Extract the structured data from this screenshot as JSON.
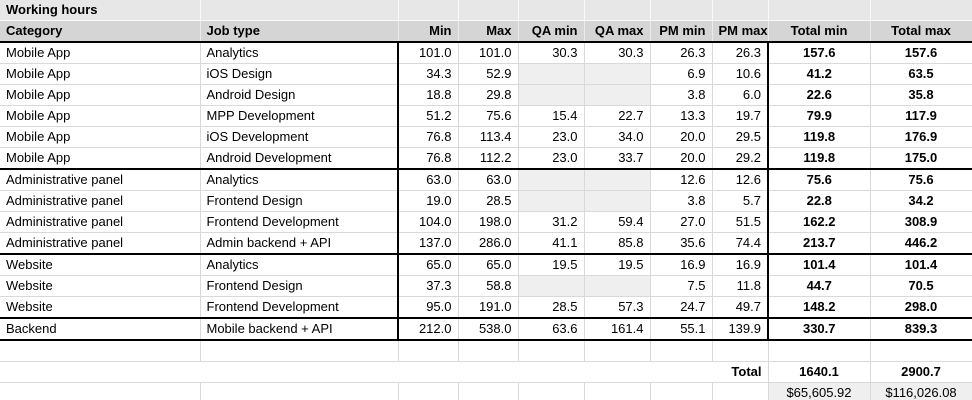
{
  "title": "Working hours",
  "columns": [
    {
      "key": "category",
      "label": "Category"
    },
    {
      "key": "job_type",
      "label": "Job type"
    },
    {
      "key": "min",
      "label": "Min"
    },
    {
      "key": "max",
      "label": "Max"
    },
    {
      "key": "qa_min",
      "label": "QA min"
    },
    {
      "key": "qa_max",
      "label": "QA max"
    },
    {
      "key": "pm_min",
      "label": "PM min"
    },
    {
      "key": "pm_max",
      "label": "PM max"
    },
    {
      "key": "total_min",
      "label": "Total min"
    },
    {
      "key": "total_max",
      "label": "Total max"
    }
  ],
  "rows": [
    {
      "category": "Mobile App",
      "job_type": "Analytics",
      "min": "101.0",
      "max": "101.0",
      "qa_min": "30.3",
      "qa_max": "30.3",
      "pm_min": "26.3",
      "pm_max": "26.3",
      "total_min": "157.6",
      "total_max": "157.6",
      "section_end": false
    },
    {
      "category": "Mobile App",
      "job_type": "iOS Design",
      "min": "34.3",
      "max": "52.9",
      "qa_min": "",
      "qa_max": "",
      "pm_min": "6.9",
      "pm_max": "10.6",
      "total_min": "41.2",
      "total_max": "63.5",
      "section_end": false
    },
    {
      "category": "Mobile App",
      "job_type": "Android Design",
      "min": "18.8",
      "max": "29.8",
      "qa_min": "",
      "qa_max": "",
      "pm_min": "3.8",
      "pm_max": "6.0",
      "total_min": "22.6",
      "total_max": "35.8",
      "section_end": false
    },
    {
      "category": "Mobile App",
      "job_type": "MPP Development",
      "min": "51.2",
      "max": "75.6",
      "qa_min": "15.4",
      "qa_max": "22.7",
      "pm_min": "13.3",
      "pm_max": "19.7",
      "total_min": "79.9",
      "total_max": "117.9",
      "section_end": false
    },
    {
      "category": "Mobile App",
      "job_type": "iOS Development",
      "min": "76.8",
      "max": "113.4",
      "qa_min": "23.0",
      "qa_max": "34.0",
      "pm_min": "20.0",
      "pm_max": "29.5",
      "total_min": "119.8",
      "total_max": "176.9",
      "section_end": false
    },
    {
      "category": "Mobile App",
      "job_type": "Android Development",
      "min": "76.8",
      "max": "112.2",
      "qa_min": "23.0",
      "qa_max": "33.7",
      "pm_min": "20.0",
      "pm_max": "29.2",
      "total_min": "119.8",
      "total_max": "175.0",
      "section_end": true
    },
    {
      "category": "Administrative panel",
      "job_type": "Analytics",
      "min": "63.0",
      "max": "63.0",
      "qa_min": "",
      "qa_max": "",
      "pm_min": "12.6",
      "pm_max": "12.6",
      "total_min": "75.6",
      "total_max": "75.6",
      "section_end": false
    },
    {
      "category": "Administrative panel",
      "job_type": "Frontend Design",
      "min": "19.0",
      "max": "28.5",
      "qa_min": "",
      "qa_max": "",
      "pm_min": "3.8",
      "pm_max": "5.7",
      "total_min": "22.8",
      "total_max": "34.2",
      "section_end": false
    },
    {
      "category": "Administrative panel",
      "job_type": "Frontend Development",
      "min": "104.0",
      "max": "198.0",
      "qa_min": "31.2",
      "qa_max": "59.4",
      "pm_min": "27.0",
      "pm_max": "51.5",
      "total_min": "162.2",
      "total_max": "308.9",
      "section_end": false
    },
    {
      "category": "Administrative panel",
      "job_type": "Admin backend + API",
      "min": "137.0",
      "max": "286.0",
      "qa_min": "41.1",
      "qa_max": "85.8",
      "pm_min": "35.6",
      "pm_max": "74.4",
      "total_min": "213.7",
      "total_max": "446.2",
      "section_end": true
    },
    {
      "category": "Website",
      "job_type": "Analytics",
      "min": "65.0",
      "max": "65.0",
      "qa_min": "19.5",
      "qa_max": "19.5",
      "pm_min": "16.9",
      "pm_max": "16.9",
      "total_min": "101.4",
      "total_max": "101.4",
      "section_end": false
    },
    {
      "category": "Website",
      "job_type": "Frontend Design",
      "min": "37.3",
      "max": "58.8",
      "qa_min": "",
      "qa_max": "",
      "pm_min": "7.5",
      "pm_max": "11.8",
      "total_min": "44.7",
      "total_max": "70.5",
      "section_end": false
    },
    {
      "category": "Website",
      "job_type": "Frontend Development",
      "min": "95.0",
      "max": "191.0",
      "qa_min": "28.5",
      "qa_max": "57.3",
      "pm_min": "24.7",
      "pm_max": "49.7",
      "total_min": "148.2",
      "total_max": "298.0",
      "section_end": true
    },
    {
      "category": "Backend",
      "job_type": "Mobile backend + API",
      "min": "212.0",
      "max": "538.0",
      "qa_min": "63.6",
      "qa_max": "161.4",
      "pm_min": "55.1",
      "pm_max": "139.9",
      "total_min": "330.7",
      "total_max": "839.3",
      "section_end": true
    }
  ],
  "summary": {
    "label": "Total",
    "total_min": "1640.1",
    "total_max": "2900.7",
    "total_min_cost": "$65,605.92",
    "total_max_cost": "$116,026.08"
  },
  "colors": {
    "title_row_bg": "#e7e7e7",
    "header_bg": "#d5d5d5",
    "empty_cell_bg": "#efefef",
    "money_cell_bg": "#efefef",
    "gridline": "#d9d9d9",
    "section_border": "#000000"
  }
}
